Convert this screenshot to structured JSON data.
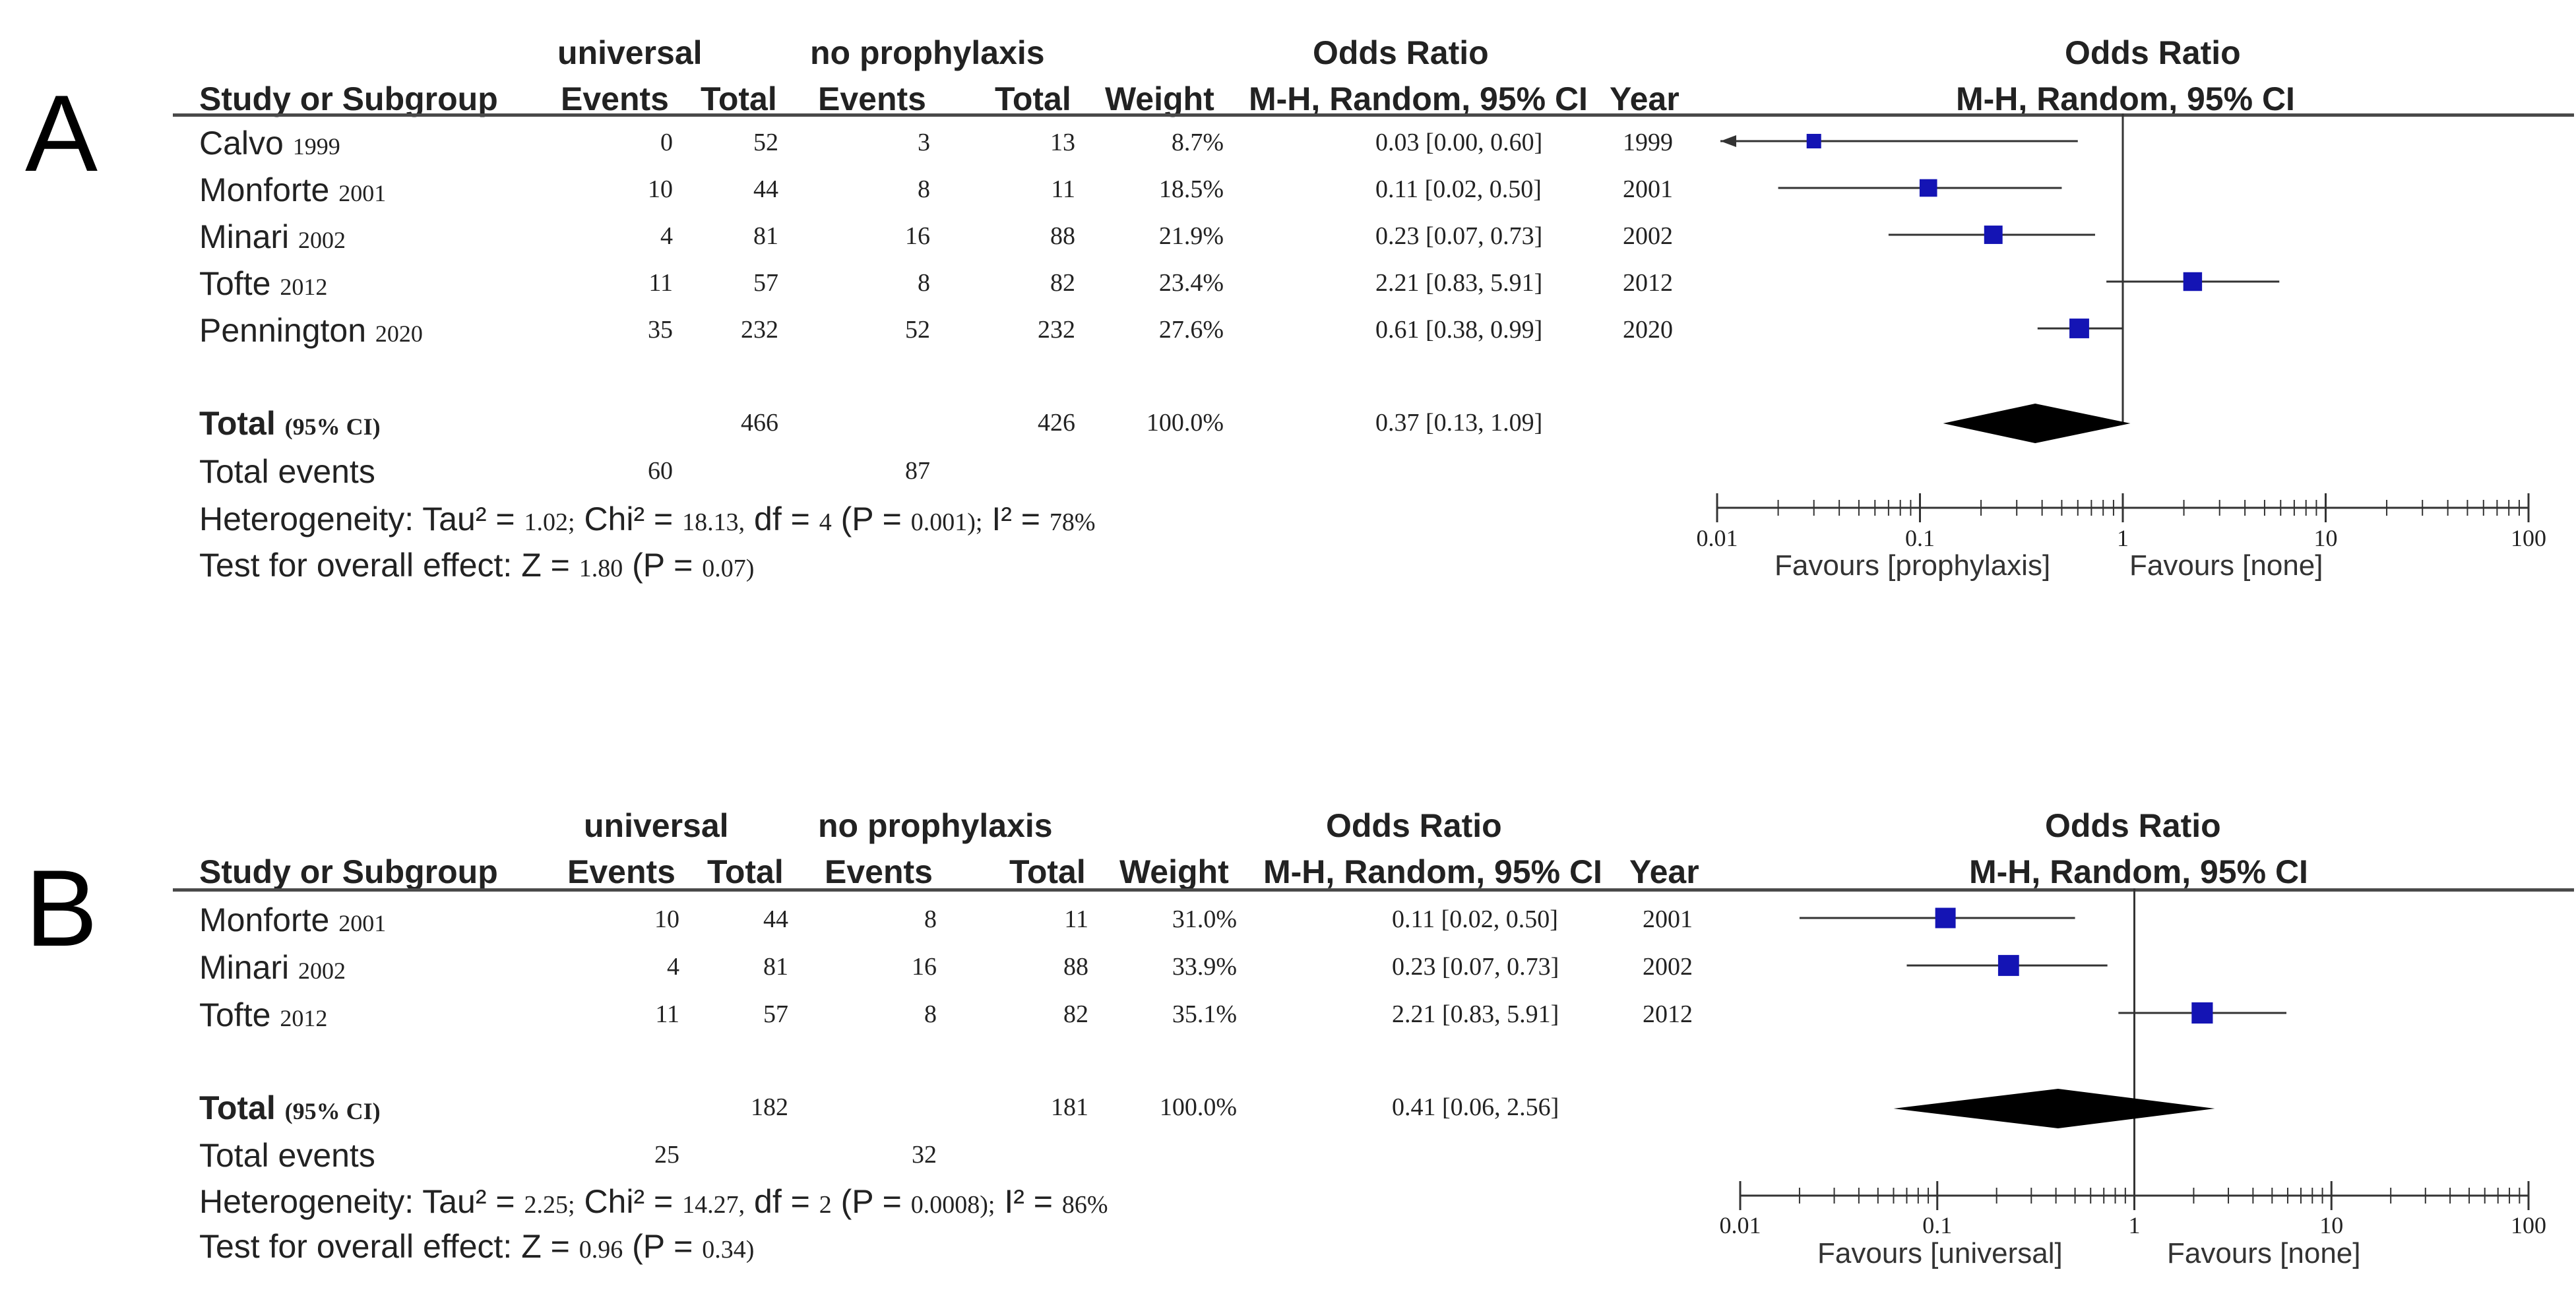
{
  "panels": [
    {
      "label": "A",
      "headers": {
        "group1": "universal",
        "group2": "no prophylaxis",
        "or_title": "Odds Ratio",
        "study": "Study or Subgroup",
        "events": "Events",
        "total": "Total",
        "weight": "Weight",
        "or_method": "M-H, Random, 95% CI",
        "year": "Year",
        "plot_title": "Odds Ratio",
        "plot_method": "M-H, Random, 95% CI"
      },
      "studies": [
        {
          "name": "Calvo",
          "yr": "1999",
          "e1": "0",
          "t1": "52",
          "e2": "3",
          "t2": "13",
          "weight": "8.7%",
          "ci": "0.03 [0.00, 0.60]",
          "year": "1999"
        },
        {
          "name": "Monforte",
          "yr": "2001",
          "e1": "10",
          "t1": "44",
          "e2": "8",
          "t2": "11",
          "weight": "18.5%",
          "ci": "0.11 [0.02, 0.50]",
          "year": "2001"
        },
        {
          "name": "Minari",
          "yr": "2002",
          "e1": "4",
          "t1": "81",
          "e2": "16",
          "t2": "88",
          "weight": "21.9%",
          "ci": "0.23 [0.07, 0.73]",
          "year": "2002"
        },
        {
          "name": "Tofte",
          "yr": "2012",
          "e1": "11",
          "t1": "57",
          "e2": "8",
          "t2": "82",
          "weight": "23.4%",
          "ci": "2.21 [0.83, 5.91]",
          "year": "2012"
        },
        {
          "name": "Pennington",
          "yr": "2020",
          "e1": "35",
          "t1": "232",
          "e2": "52",
          "t2": "232",
          "weight": "27.6%",
          "ci": "0.61 [0.38, 0.99]",
          "year": "2020"
        }
      ],
      "total": {
        "label": "Total",
        "ci_label": "(95% CI)",
        "t1": "466",
        "t2": "426",
        "weight": "100.0%",
        "ci": "0.37 [0.13, 1.09]"
      },
      "total_events": {
        "label": "Total events",
        "e1": "60",
        "e2": "87"
      },
      "heterogeneity": {
        "label": "Heterogeneity:",
        "tau_label": "Tau² =",
        "tau": "1.02;",
        "chi_label": "Chi² =",
        "chi": "18.13,",
        "df_label": "df =",
        "df": "4",
        "p_label": "(P =",
        "p": "0.001);",
        "i2_label": "I² =",
        "i2": "78%"
      },
      "overall_effect": {
        "label": "Test for overall effect:",
        "z_label": "Z =",
        "z": "1.80",
        "p_label": "(P =",
        "p": "0.07)"
      },
      "axis": {
        "ticks": [
          "0.01",
          "0.1",
          "1",
          "10",
          "100"
        ],
        "favours_left": "Favours [prophylaxis]",
        "favours_right": "Favours [none]"
      }
    },
    {
      "label": "B",
      "headers": {
        "group1": "universal",
        "group2": "no prophylaxis",
        "or_title": "Odds Ratio",
        "study": "Study or Subgroup",
        "events": "Events",
        "total": "Total",
        "weight": "Weight",
        "or_method": "M-H, Random, 95% CI",
        "year": "Year",
        "plot_title": "Odds Ratio",
        "plot_method": "M-H, Random, 95% CI"
      },
      "studies": [
        {
          "name": "Monforte",
          "yr": "2001",
          "e1": "10",
          "t1": "44",
          "e2": "8",
          "t2": "11",
          "weight": "31.0%",
          "ci": "0.11 [0.02, 0.50]",
          "year": "2001"
        },
        {
          "name": "Minari",
          "yr": "2002",
          "e1": "4",
          "t1": "81",
          "e2": "16",
          "t2": "88",
          "weight": "33.9%",
          "ci": "0.23 [0.07, 0.73]",
          "year": "2002"
        },
        {
          "name": "Tofte",
          "yr": "2012",
          "e1": "11",
          "t1": "57",
          "e2": "8",
          "t2": "82",
          "weight": "35.1%",
          "ci": "2.21 [0.83, 5.91]",
          "year": "2012"
        }
      ],
      "total": {
        "label": "Total",
        "ci_label": "(95% CI)",
        "t1": "182",
        "t2": "181",
        "weight": "100.0%",
        "ci": "0.41 [0.06, 2.56]"
      },
      "total_events": {
        "label": "Total events",
        "e1": "25",
        "e2": "32"
      },
      "heterogeneity": {
        "label": "Heterogeneity:",
        "tau_label": "Tau² =",
        "tau": "2.25;",
        "chi_label": "Chi² =",
        "chi": "14.27,",
        "df_label": "df =",
        "df": "2",
        "p_label": "(P =",
        "p": "0.0008);",
        "i2_label": "I² =",
        "i2": "86%"
      },
      "overall_effect": {
        "label": "Test for overall effect:",
        "z_label": "Z =",
        "z": "0.96",
        "p_label": "(P =",
        "p": "0.34)"
      },
      "axis": {
        "ticks": [
          "0.01",
          "0.1",
          "1",
          "10",
          "100"
        ],
        "favours_left": "Favours [universal]",
        "favours_right": "Favours [none]"
      }
    }
  ],
  "chart_data": [
    {
      "type": "forest",
      "panel": "A",
      "scale": "log",
      "xlim": [
        0.01,
        100
      ],
      "null_value": 1,
      "marker_color": "#1414b4",
      "studies": [
        {
          "label": "Calvo 1999",
          "or": 0.03,
          "lo": 0.0,
          "hi": 0.6,
          "weight": 8.7,
          "arrow_left": true
        },
        {
          "label": "Monforte 2001",
          "or": 0.11,
          "lo": 0.02,
          "hi": 0.5,
          "weight": 18.5
        },
        {
          "label": "Minari 2002",
          "or": 0.23,
          "lo": 0.07,
          "hi": 0.73,
          "weight": 21.9
        },
        {
          "label": "Tofte 2012",
          "or": 2.21,
          "lo": 0.83,
          "hi": 5.91,
          "weight": 23.4
        },
        {
          "label": "Pennington 2020",
          "or": 0.61,
          "lo": 0.38,
          "hi": 0.99,
          "weight": 27.6
        }
      ],
      "pooled": {
        "or": 0.37,
        "lo": 0.13,
        "hi": 1.09
      }
    },
    {
      "type": "forest",
      "panel": "B",
      "scale": "log",
      "xlim": [
        0.01,
        100
      ],
      "null_value": 1,
      "marker_color": "#1414b4",
      "studies": [
        {
          "label": "Monforte 2001",
          "or": 0.11,
          "lo": 0.02,
          "hi": 0.5,
          "weight": 31.0
        },
        {
          "label": "Minari 2002",
          "or": 0.23,
          "lo": 0.07,
          "hi": 0.73,
          "weight": 33.9
        },
        {
          "label": "Tofte 2012",
          "or": 2.21,
          "lo": 0.83,
          "hi": 5.91,
          "weight": 35.1
        }
      ],
      "pooled": {
        "or": 0.41,
        "lo": 0.06,
        "hi": 2.56
      }
    }
  ]
}
